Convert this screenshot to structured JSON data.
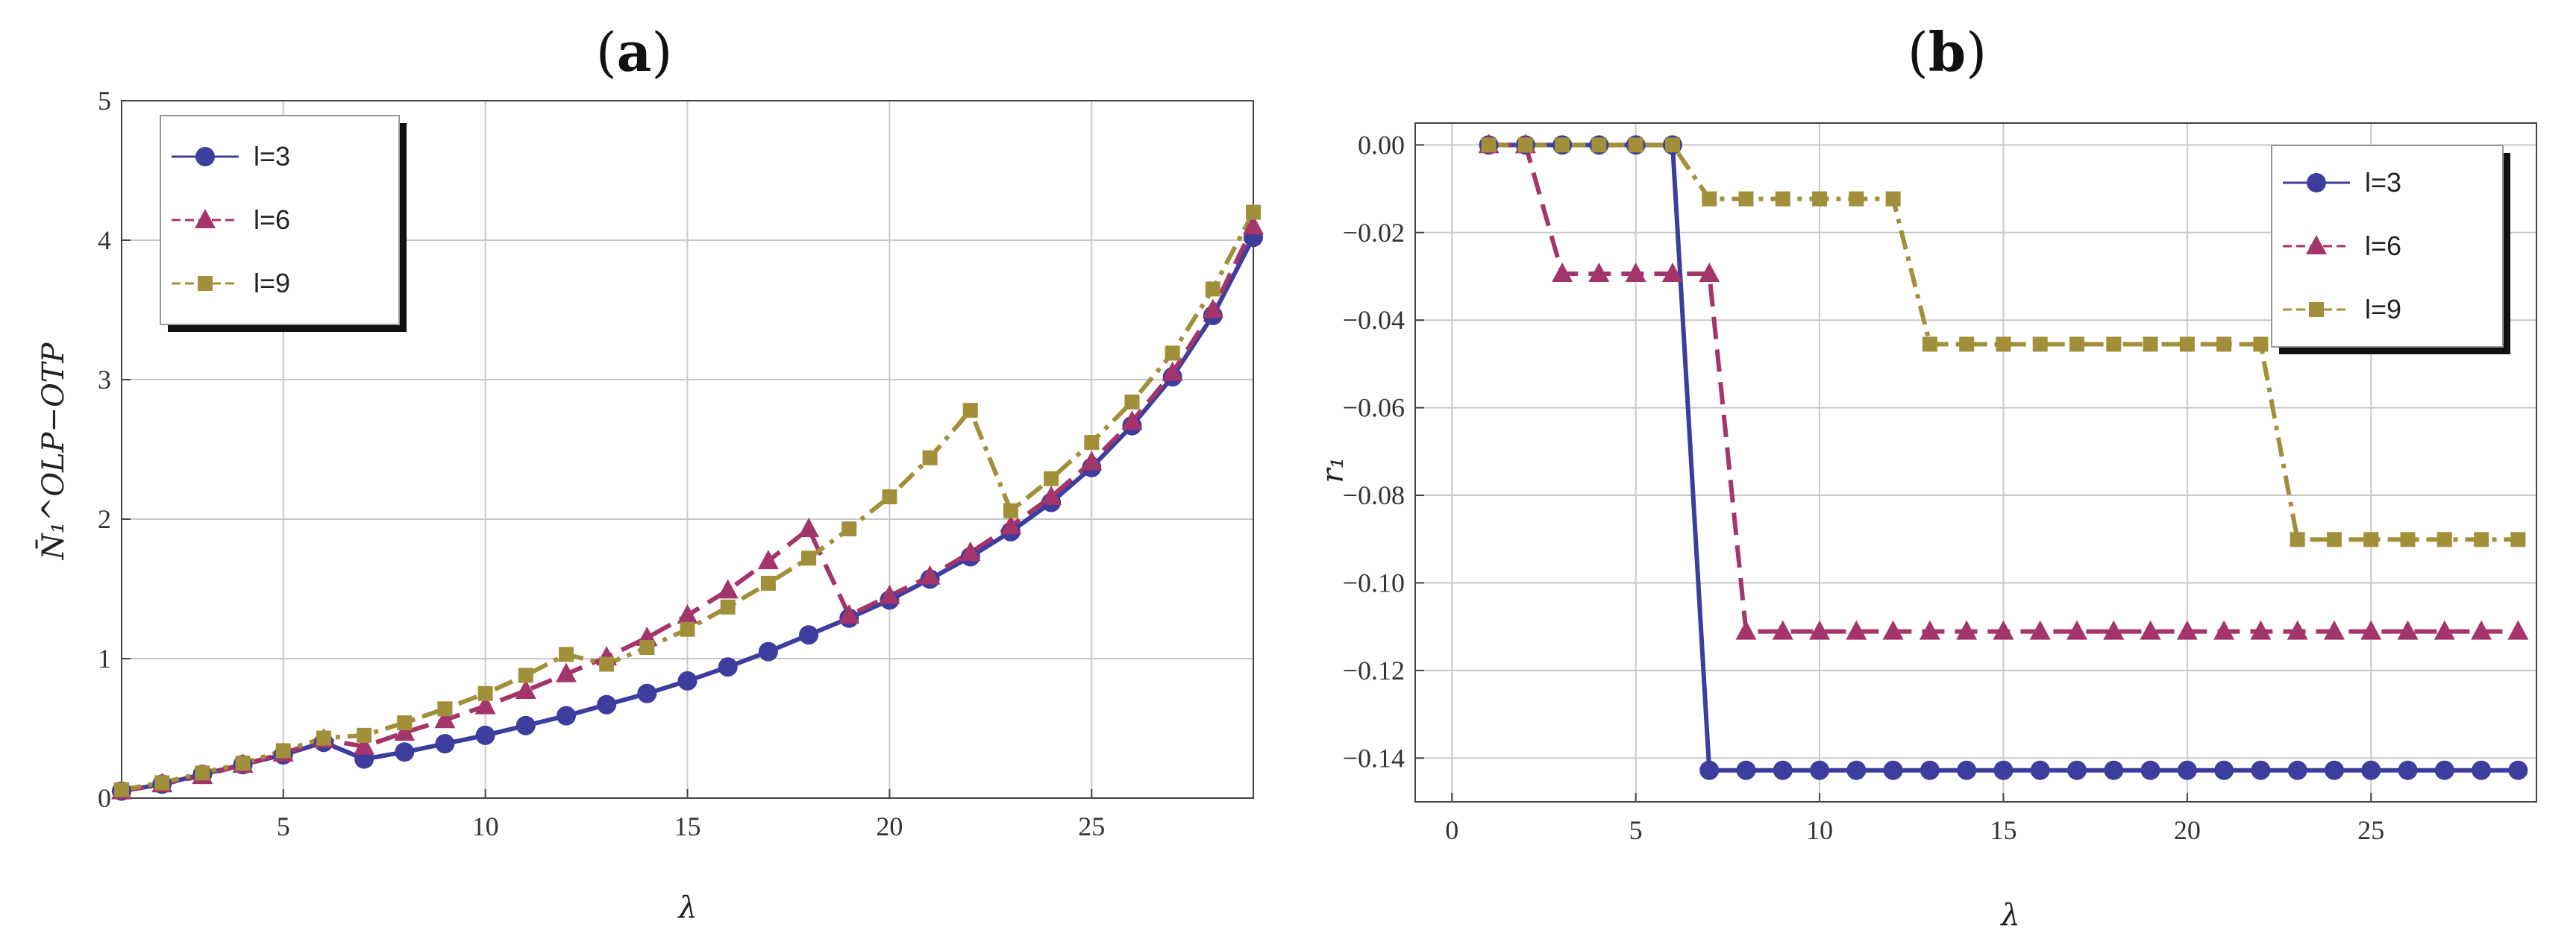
{
  "chart_data": [
    {
      "panel": "a",
      "type": "line",
      "title": "(a)",
      "xlabel": "λ",
      "ylabel": "N̄₁^OLP−OTP",
      "xlim": [
        1,
        29
      ],
      "ylim": [
        0,
        5
      ],
      "xticks": [
        5,
        10,
        15,
        20,
        25
      ],
      "yticks": [
        0,
        1,
        2,
        3,
        4,
        5
      ],
      "tick_labels_x": [
        "5",
        "10",
        "15",
        "20",
        "25"
      ],
      "tick_labels_y": [
        "0",
        "1",
        "2",
        "3",
        "4",
        "5"
      ],
      "grid": true,
      "legend": "top-left",
      "x": [
        1,
        2,
        3,
        4,
        5,
        6,
        7,
        8,
        9,
        10,
        11,
        12,
        13,
        14,
        15,
        16,
        17,
        18,
        19,
        20,
        21,
        22,
        23,
        24,
        25,
        26,
        27,
        28,
        29
      ],
      "series": [
        {
          "name": "l=3",
          "label": "l=3",
          "color": "#3d3d9e",
          "marker": "circle",
          "dash": "solid",
          "values": [
            0.05,
            0.1,
            0.17,
            0.24,
            0.31,
            0.4,
            0.28,
            0.33,
            0.39,
            0.45,
            0.52,
            0.59,
            0.67,
            0.75,
            0.84,
            0.94,
            1.05,
            1.17,
            1.29,
            1.42,
            1.57,
            1.73,
            1.91,
            2.12,
            2.37,
            2.67,
            3.02,
            3.46,
            4.02
          ]
        },
        {
          "name": "l=6",
          "label": "l=6",
          "color": "#a3356b",
          "marker": "triangle",
          "dash": "dashed",
          "values": [
            0.05,
            0.1,
            0.16,
            0.24,
            0.32,
            0.42,
            0.37,
            0.47,
            0.56,
            0.66,
            0.77,
            0.89,
            1.01,
            1.15,
            1.31,
            1.49,
            1.7,
            1.93,
            1.31,
            1.45,
            1.59,
            1.76,
            1.95,
            2.16,
            2.41,
            2.7,
            3.05,
            3.5,
            4.1
          ]
        },
        {
          "name": "l=9",
          "label": "l=9",
          "color": "#a18f3a",
          "marker": "square",
          "dash": "dashdot",
          "values": [
            0.06,
            0.11,
            0.18,
            0.25,
            0.34,
            0.43,
            0.45,
            0.54,
            0.64,
            0.75,
            0.88,
            1.03,
            0.96,
            1.08,
            1.21,
            1.37,
            1.54,
            1.72,
            1.93,
            2.16,
            2.44,
            2.78,
            2.06,
            2.29,
            2.55,
            2.84,
            3.19,
            3.65,
            4.2
          ]
        }
      ]
    },
    {
      "panel": "b",
      "type": "line",
      "title": "(b)",
      "xlabel": "λ",
      "ylabel": "r₁",
      "xlim": [
        -1,
        29.5
      ],
      "ylim": [
        -0.15,
        0.005
      ],
      "xticks": [
        0,
        5,
        10,
        15,
        20,
        25
      ],
      "yticks": [
        0.0,
        -0.02,
        -0.04,
        -0.06,
        -0.08,
        -0.1,
        -0.12,
        -0.14
      ],
      "tick_labels_x": [
        "0",
        "5",
        "10",
        "15",
        "20",
        "25"
      ],
      "tick_labels_y": [
        "0.00",
        "−0.02",
        "−0.04",
        "−0.06",
        "−0.08",
        "−0.10",
        "−0.12",
        "−0.14"
      ],
      "grid": true,
      "legend": "top-right",
      "x": [
        1,
        2,
        3,
        4,
        5,
        6,
        7,
        8,
        9,
        10,
        11,
        12,
        13,
        14,
        15,
        16,
        17,
        18,
        19,
        20,
        21,
        22,
        23,
        24,
        25,
        26,
        27,
        28,
        29
      ],
      "series": [
        {
          "name": "l=3",
          "label": "l=3",
          "color": "#3d3d9e",
          "marker": "circle",
          "dash": "solid",
          "values": [
            0,
            0,
            0,
            0,
            0,
            0,
            -0.1428,
            -0.1428,
            -0.1428,
            -0.1428,
            -0.1428,
            -0.1428,
            -0.1428,
            -0.1428,
            -0.1428,
            -0.1428,
            -0.1428,
            -0.1428,
            -0.1428,
            -0.1428,
            -0.1428,
            -0.1428,
            -0.1428,
            -0.1428,
            -0.1428,
            -0.1428,
            -0.1428,
            -0.1428,
            -0.1428
          ]
        },
        {
          "name": "l=6",
          "label": "l=6",
          "color": "#a3356b",
          "marker": "triangle",
          "dash": "dashed",
          "values": [
            0,
            0,
            -0.0294,
            -0.0294,
            -0.0294,
            -0.0294,
            -0.0294,
            -0.1111,
            -0.1111,
            -0.1111,
            -0.1111,
            -0.1111,
            -0.1111,
            -0.1111,
            -0.1111,
            -0.1111,
            -0.1111,
            -0.1111,
            -0.1111,
            -0.1111,
            -0.1111,
            -0.1111,
            -0.1111,
            -0.1111,
            -0.1111,
            -0.1111,
            -0.1111,
            -0.1111,
            -0.1111
          ]
        },
        {
          "name": "l=9",
          "label": "l=9",
          "color": "#a18f3a",
          "marker": "square",
          "dash": "dashdot",
          "values": [
            0,
            0,
            0,
            0,
            0,
            0,
            -0.0123,
            -0.0123,
            -0.0123,
            -0.0123,
            -0.0123,
            -0.0123,
            -0.0455,
            -0.0455,
            -0.0455,
            -0.0455,
            -0.0455,
            -0.0455,
            -0.0455,
            -0.0455,
            -0.0455,
            -0.0455,
            -0.0901,
            -0.0901,
            -0.0901,
            -0.0901,
            -0.0901,
            -0.0901,
            -0.0901
          ]
        }
      ]
    }
  ]
}
